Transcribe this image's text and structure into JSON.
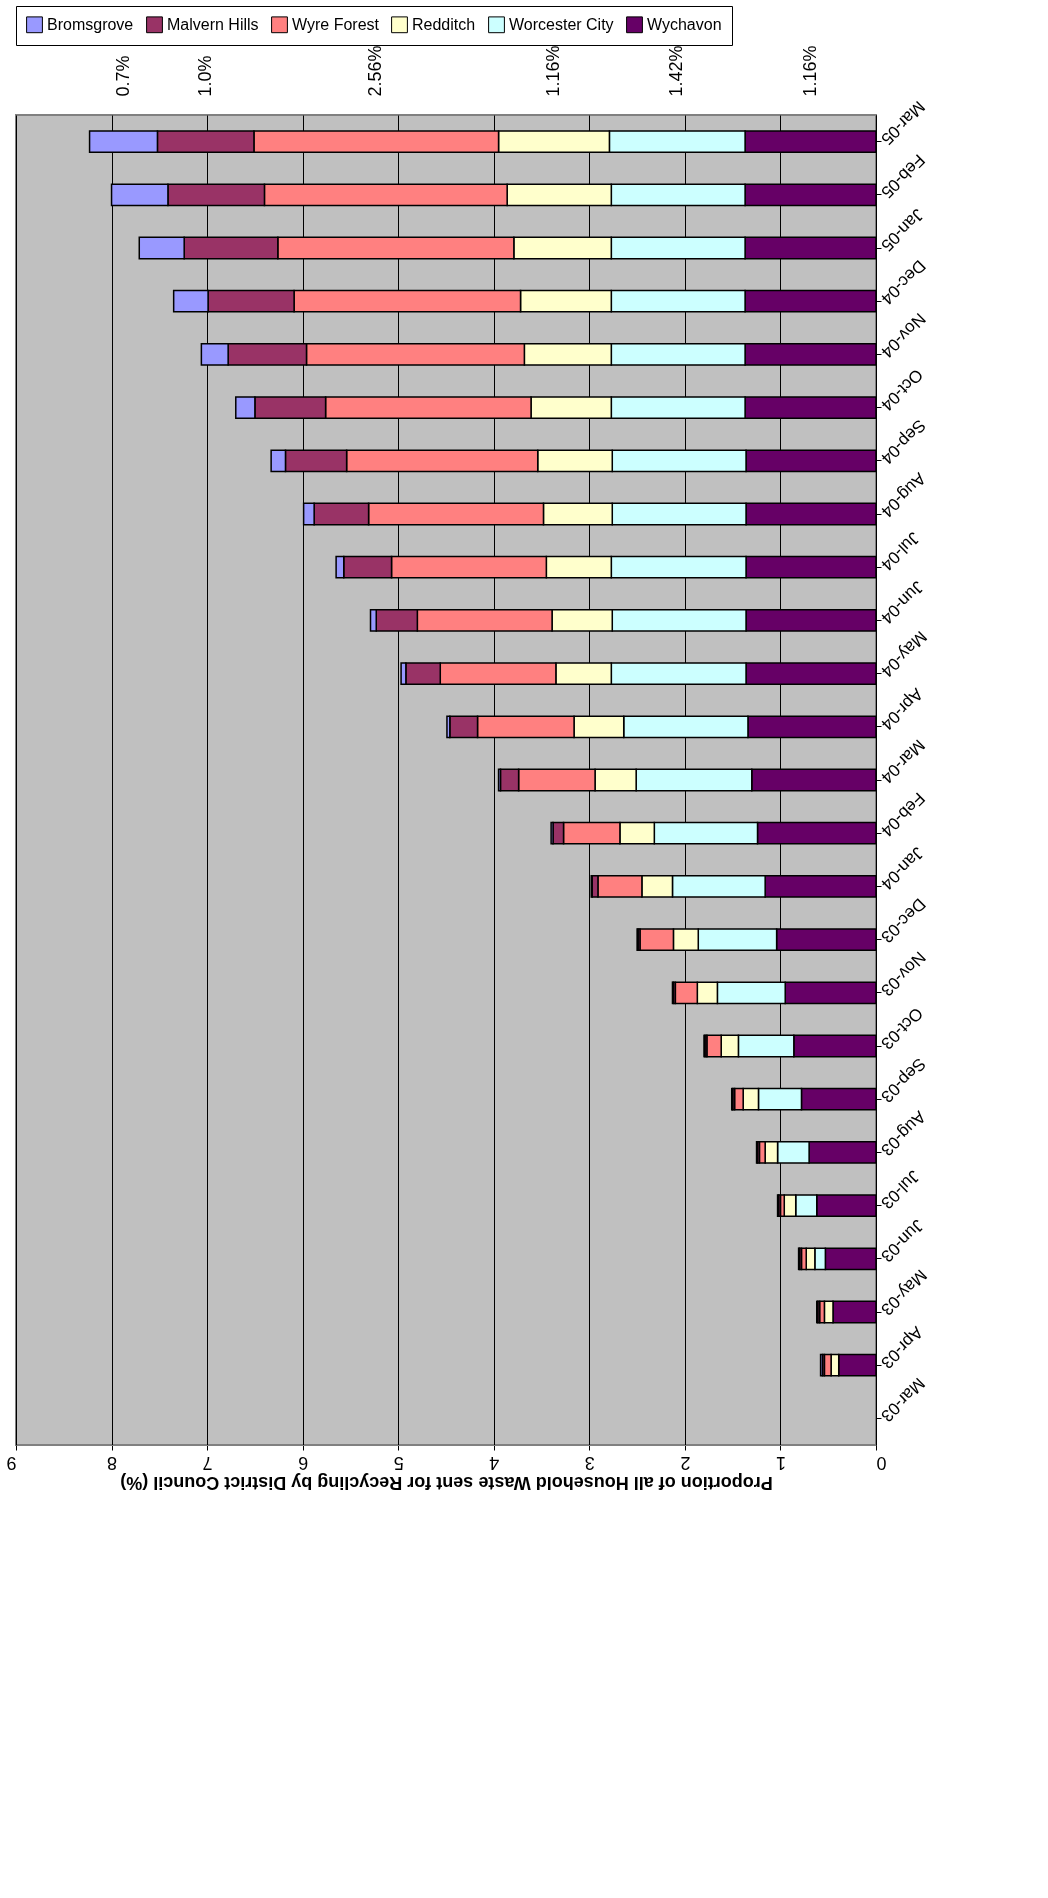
{
  "chart_data": {
    "type": "bar",
    "orientation": "horizontal",
    "stacked": true,
    "xlabel": "Proportion of all Household Waste sent for Recycling by District Council (%)",
    "categories": [
      "Mar-05",
      "Feb-05",
      "Jan-05",
      "Dec-04",
      "Nov-04",
      "Oct-04",
      "Sep-04",
      "Aug-04",
      "Jul-04",
      "Jun-04",
      "May-04",
      "Apr-04",
      "Mar-04",
      "Feb-04",
      "Jan-04",
      "Dec-03",
      "Nov-03",
      "Oct-03",
      "Sep-03",
      "Aug-03",
      "Jul-03",
      "Jun-03",
      "May-03",
      "Apr-03",
      "Mar-03"
    ],
    "series": [
      {
        "name": "Wychavon",
        "color": "#660066",
        "values": [
          1.37,
          1.37,
          1.37,
          1.37,
          1.37,
          1.37,
          1.36,
          1.36,
          1.36,
          1.36,
          1.36,
          1.34,
          1.3,
          1.24,
          1.16,
          1.04,
          0.95,
          0.86,
          0.78,
          0.7,
          0.62,
          0.53,
          0.45,
          0.39,
          null
        ]
      },
      {
        "name": "Worcester City",
        "color": "#ccffff",
        "values": [
          1.42,
          1.4,
          1.4,
          1.4,
          1.4,
          1.4,
          1.4,
          1.4,
          1.41,
          1.4,
          1.41,
          1.3,
          1.21,
          1.08,
          0.97,
          0.82,
          0.71,
          0.58,
          0.45,
          0.33,
          0.22,
          0.11,
          null,
          null,
          null
        ]
      },
      {
        "name": "Redditch",
        "color": "#ffffcc",
        "values": [
          1.16,
          1.09,
          1.02,
          0.95,
          0.91,
          0.84,
          0.78,
          0.72,
          0.68,
          0.63,
          0.58,
          0.52,
          0.43,
          0.36,
          0.32,
          0.26,
          0.21,
          0.18,
          0.16,
          0.13,
          0.12,
          0.09,
          0.09,
          0.08,
          null
        ]
      },
      {
        "name": "Wyre Forest",
        "color": "#ff8080",
        "values": [
          2.56,
          2.54,
          2.47,
          2.37,
          2.28,
          2.15,
          2.0,
          1.83,
          1.62,
          1.41,
          1.21,
          1.01,
          0.8,
          0.59,
          0.46,
          0.35,
          0.23,
          0.15,
          0.09,
          0.06,
          0.04,
          0.05,
          0.05,
          0.07,
          null
        ]
      },
      {
        "name": "Malvern Hills",
        "color": "#993366",
        "values": [
          1.01,
          1.01,
          0.98,
          0.9,
          0.82,
          0.74,
          0.64,
          0.57,
          0.5,
          0.43,
          0.36,
          0.29,
          0.19,
          0.11,
          0.06,
          0.02,
          0.02,
          0.02,
          0.02,
          0.02,
          0.02,
          0.02,
          0.02,
          0.02,
          null
        ]
      },
      {
        "name": "Bromsgrove",
        "color": "#9999ff",
        "values": [
          0.71,
          0.59,
          0.47,
          0.36,
          0.28,
          0.2,
          0.15,
          0.11,
          0.08,
          0.06,
          0.05,
          0.03,
          0.02,
          0.02,
          0.01,
          0.01,
          0.01,
          0.01,
          0.01,
          0.01,
          0.01,
          0.01,
          0.01,
          0.02,
          null
        ]
      }
    ],
    "xlim": [
      9,
      0
    ],
    "xticks": [
      0,
      1,
      2,
      3,
      4,
      5,
      6,
      7,
      8,
      9
    ],
    "grid": "x",
    "legend": "top",
    "annotations": [
      "0.7%",
      "1.0%",
      "2.56%",
      "1.16%",
      "1.42%",
      "1.16%"
    ]
  }
}
